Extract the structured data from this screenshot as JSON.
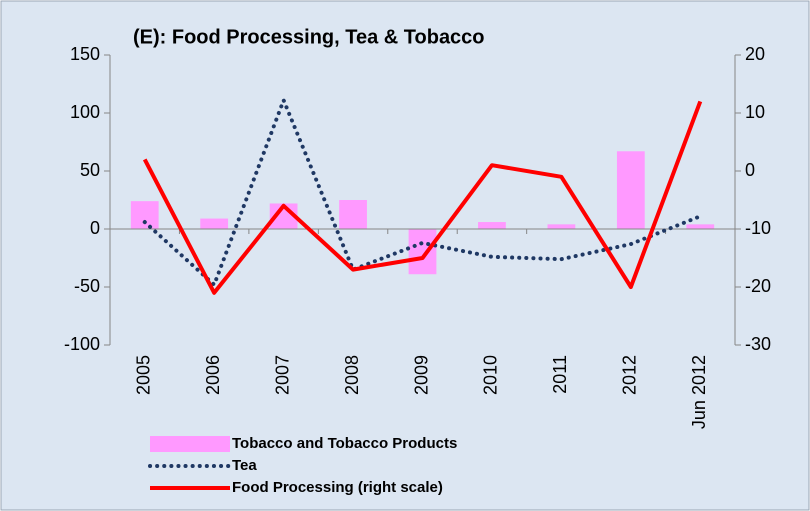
{
  "chart_data": {
    "type": "bar-line",
    "title": "(E): Food Processing, Tea & Tobacco",
    "categories": [
      "2005",
      "2006",
      "2007",
      "2008",
      "2009",
      "2010",
      "2011",
      "2012",
      "Jun 2012"
    ],
    "series": [
      {
        "name": "Tobacco and Tobacco Products",
        "type": "bar",
        "color": "#ff99ff",
        "values": [
          24,
          9,
          22,
          25,
          -39,
          6,
          4,
          67,
          4
        ]
      },
      {
        "name": "Tea",
        "type": "line",
        "style": "dotted",
        "color": "#1f3864",
        "values": [
          6,
          -48,
          111,
          -35,
          -12,
          -24,
          -26,
          -13,
          11
        ]
      },
      {
        "name": "Food Processing (right scale)",
        "type": "line",
        "axis": "y2",
        "color": "#ff0000",
        "values": [
          2,
          -21,
          -6,
          -17,
          -15,
          1,
          -1,
          -20,
          12
        ]
      }
    ],
    "ylim": [
      -100,
      150
    ],
    "yticks": [
      -100,
      -50,
      0,
      50,
      100,
      150
    ],
    "y2lim": [
      -30,
      20
    ],
    "y2ticks": [
      -30,
      -20,
      -10,
      0,
      10,
      20
    ]
  }
}
